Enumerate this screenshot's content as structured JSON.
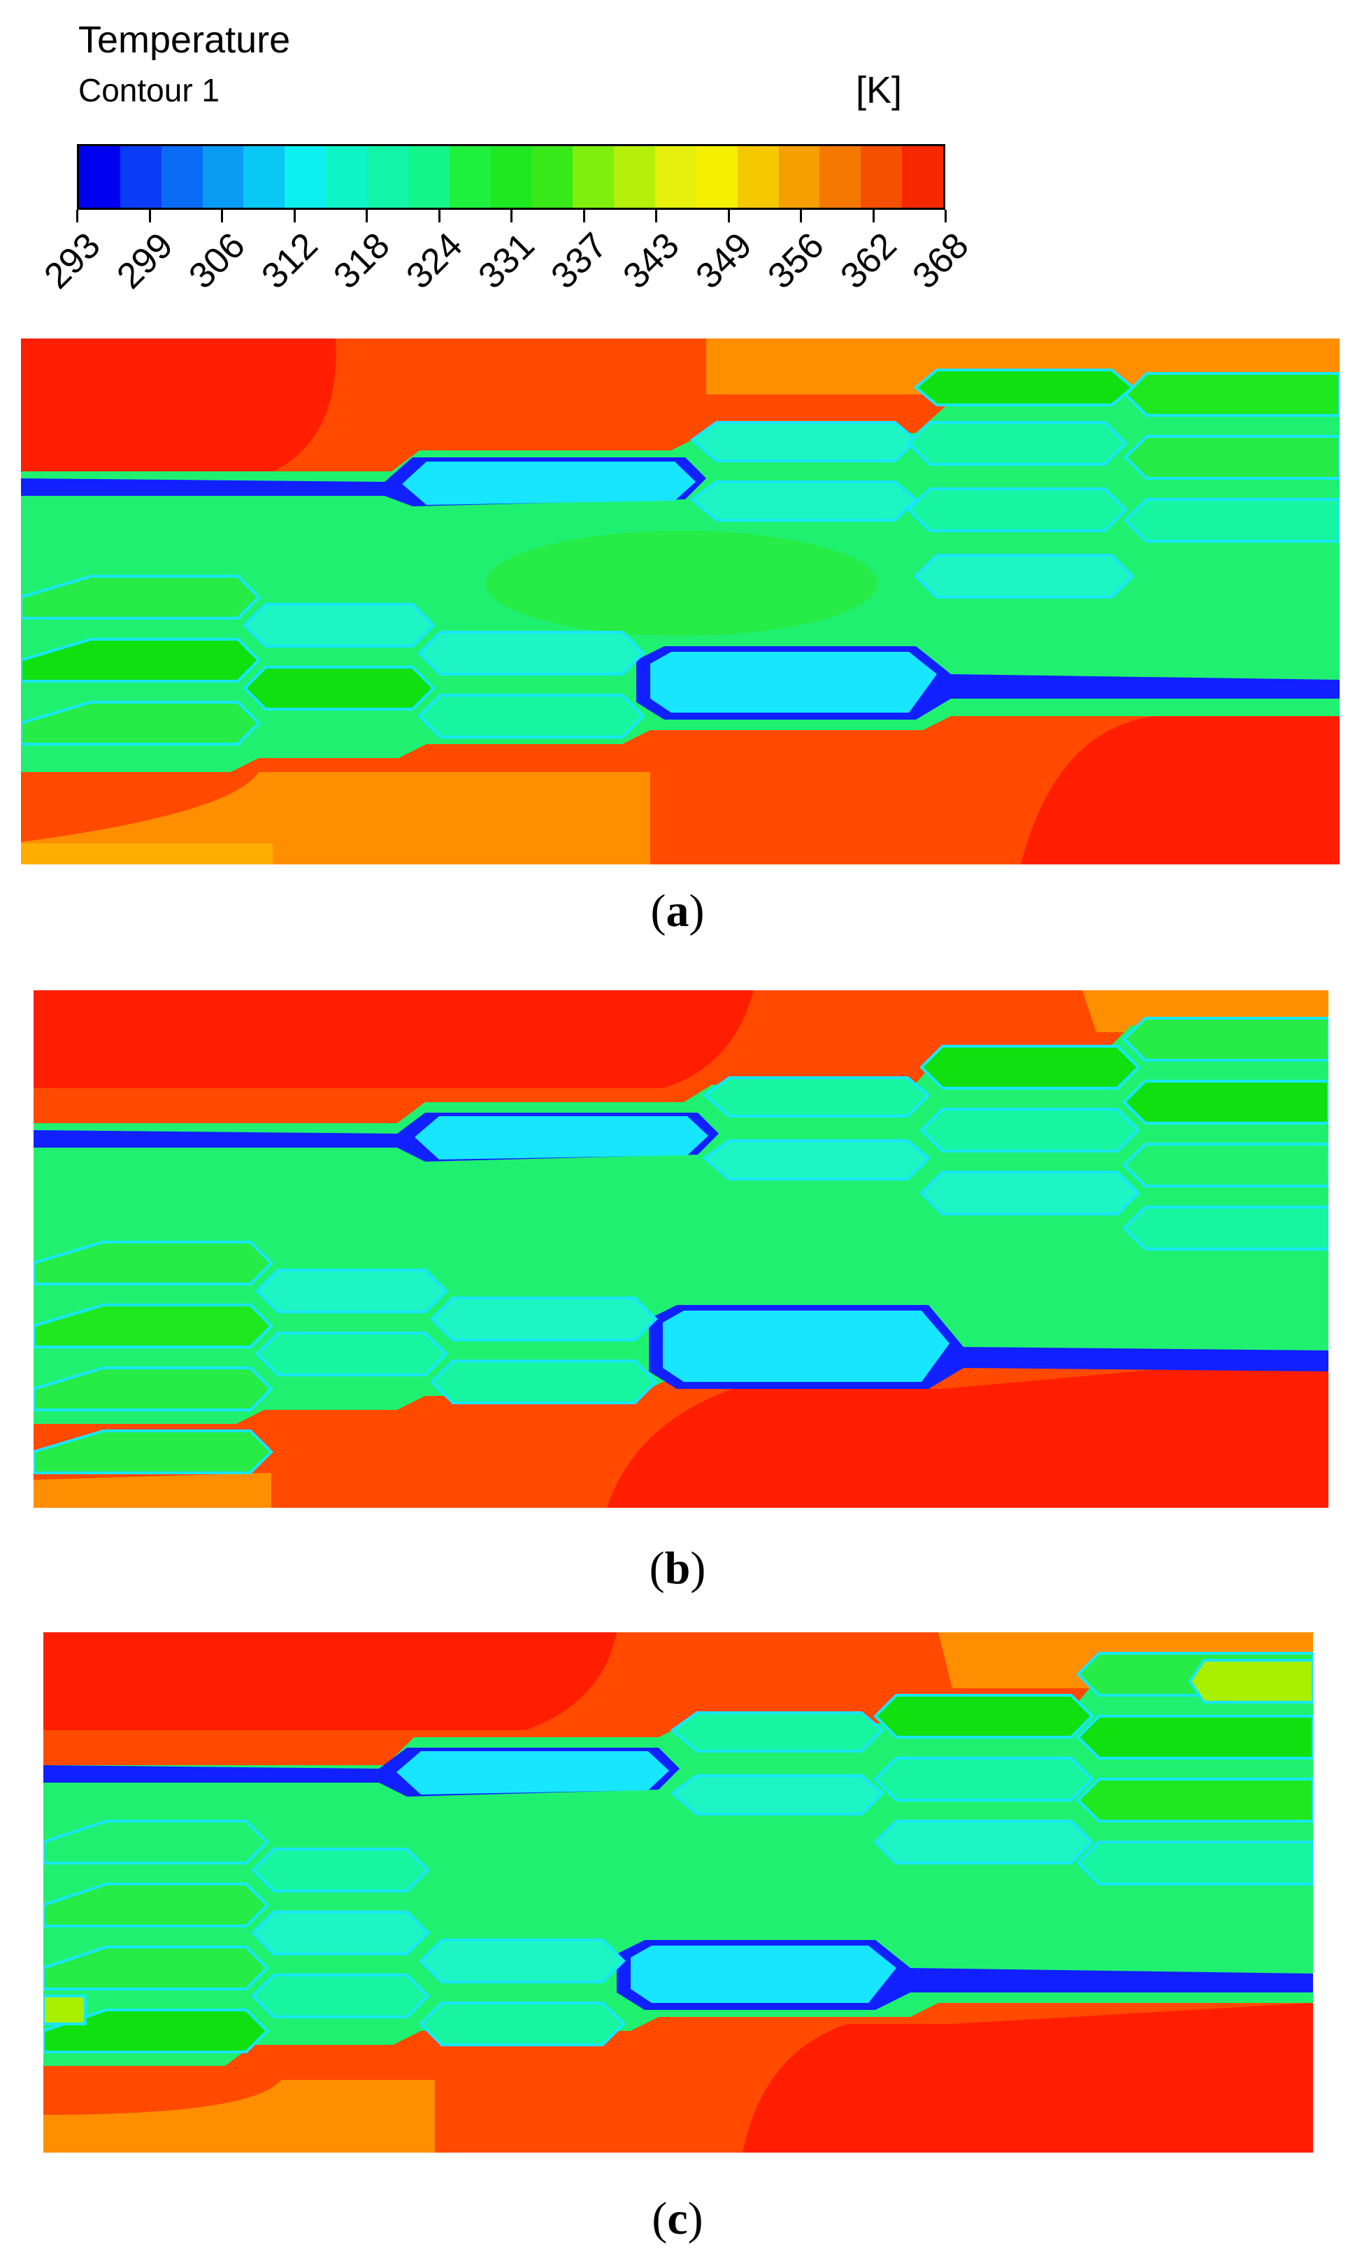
{
  "legend": {
    "title": "Temperature",
    "subtitle": "Contour 1",
    "unit": "[K]",
    "tick_labels": [
      "293",
      "299",
      "306",
      "312",
      "318",
      "324",
      "331",
      "337",
      "343",
      "349",
      "356",
      "362",
      "368"
    ],
    "colors": [
      "#0000f0",
      "#0a3cf5",
      "#0a6cf5",
      "#0a9cf5",
      "#0ac8f5",
      "#0cf0f0",
      "#10f5c8",
      "#12f5a8",
      "#14f58a",
      "#1ef03c",
      "#20e820",
      "#38e818",
      "#7ef00c",
      "#b4f00c",
      "#e6f00c",
      "#f5f000",
      "#f5c800",
      "#f5a000",
      "#f57800",
      "#f55000",
      "#f52800"
    ]
  },
  "panels": [
    {
      "label": "a"
    },
    {
      "label": "b"
    },
    {
      "label": "c"
    }
  ],
  "palette": {
    "red": "#ff1e00",
    "red_orange": "#ff4a00",
    "orange": "#ff8f00",
    "amber": "#ffae00",
    "bright_green": "#10e010",
    "green": "#27eb46",
    "light_green": "#20f070",
    "teal": "#18f5a0",
    "aqua": "#1ef5c4",
    "cyan": "#18e6ff",
    "blue": "#1020ff",
    "yellow_green": "#a8f000"
  }
}
